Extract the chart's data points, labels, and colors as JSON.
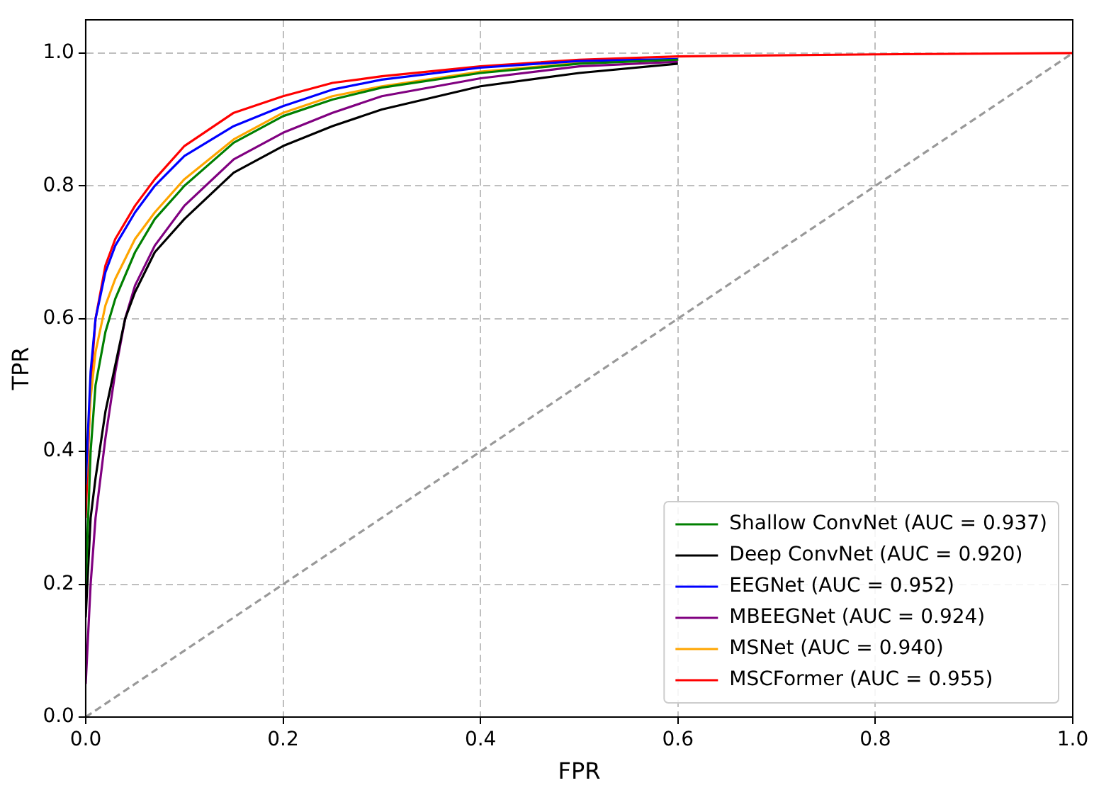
{
  "chart_data": {
    "type": "line",
    "xlabel": "FPR",
    "ylabel": "TPR",
    "xlim": [
      0,
      1
    ],
    "ylim": [
      0,
      1.05
    ],
    "xticks": [
      {
        "value": 0,
        "label": "0.0"
      },
      {
        "value": 0.2,
        "label": "0.2"
      },
      {
        "value": 0.4,
        "label": "0.4"
      },
      {
        "value": 0.6,
        "label": "0.6"
      },
      {
        "value": 0.8,
        "label": "0.8"
      },
      {
        "value": 1,
        "label": "1.0"
      }
    ],
    "yticks": [
      {
        "value": 0,
        "label": "0.0"
      },
      {
        "value": 0.2,
        "label": "0.2"
      },
      {
        "value": 0.4,
        "label": "0.4"
      },
      {
        "value": 0.6,
        "label": "0.6"
      },
      {
        "value": 0.8,
        "label": "0.8"
      },
      {
        "value": 1,
        "label": "1.0"
      }
    ],
    "grid": true,
    "legend": "bottom right",
    "marker": "none",
    "series": [
      {
        "name": "Shallow ConvNet (AUC = 0.937)",
        "color": "#008000",
        "x": [
          0,
          0.005,
          0.01,
          0.02,
          0.03,
          0.05,
          0.07,
          0.1,
          0.15,
          0.2,
          0.25,
          0.3,
          0.4,
          0.5,
          0.6
        ],
        "values": [
          0.2,
          0.4,
          0.5,
          0.58,
          0.63,
          0.7,
          0.75,
          0.8,
          0.865,
          0.905,
          0.93,
          0.948,
          0.97,
          0.984,
          0.99
        ]
      },
      {
        "name": "Deep ConvNet (AUC = 0.920)",
        "color": "#000000",
        "x": [
          0,
          0.005,
          0.01,
          0.02,
          0.03,
          0.04,
          0.05,
          0.07,
          0.1,
          0.15,
          0.2,
          0.25,
          0.3,
          0.4,
          0.5,
          0.6
        ],
        "values": [
          0.15,
          0.3,
          0.36,
          0.46,
          0.53,
          0.6,
          0.64,
          0.7,
          0.75,
          0.82,
          0.86,
          0.89,
          0.915,
          0.95,
          0.97,
          0.984
        ]
      },
      {
        "name": "EEGNet (AUC = 0.952)",
        "color": "#0000ff",
        "x": [
          0,
          0.005,
          0.01,
          0.02,
          0.03,
          0.05,
          0.07,
          0.1,
          0.15,
          0.2,
          0.25,
          0.3,
          0.4,
          0.5,
          0.6
        ],
        "values": [
          0.35,
          0.52,
          0.6,
          0.67,
          0.71,
          0.76,
          0.8,
          0.845,
          0.89,
          0.92,
          0.945,
          0.96,
          0.978,
          0.988,
          0.991
        ]
      },
      {
        "name": "MBEEGNet (AUC = 0.924)",
        "color": "#800080",
        "x": [
          0,
          0.005,
          0.01,
          0.02,
          0.03,
          0.04,
          0.05,
          0.07,
          0.1,
          0.15,
          0.2,
          0.25,
          0.3,
          0.4,
          0.5,
          0.6
        ],
        "values": [
          0.05,
          0.2,
          0.3,
          0.42,
          0.52,
          0.6,
          0.65,
          0.71,
          0.77,
          0.84,
          0.88,
          0.91,
          0.935,
          0.962,
          0.98,
          0.987
        ]
      },
      {
        "name": "MSNet (AUC = 0.940)",
        "color": "#ffa500",
        "x": [
          0,
          0.005,
          0.01,
          0.02,
          0.03,
          0.05,
          0.07,
          0.1,
          0.15,
          0.2,
          0.25,
          0.3,
          0.4,
          0.5,
          0.6
        ],
        "values": [
          0.35,
          0.48,
          0.55,
          0.62,
          0.66,
          0.72,
          0.76,
          0.81,
          0.87,
          0.91,
          0.935,
          0.95,
          0.972,
          0.985,
          0.99
        ]
      },
      {
        "name": "MSCFormer (AUC = 0.955)",
        "color": "#ff0000",
        "x": [
          0,
          0.005,
          0.01,
          0.02,
          0.03,
          0.05,
          0.07,
          0.1,
          0.15,
          0.2,
          0.25,
          0.3,
          0.4,
          0.5,
          0.6,
          0.8,
          1
        ],
        "values": [
          0.3,
          0.5,
          0.6,
          0.68,
          0.72,
          0.77,
          0.81,
          0.86,
          0.91,
          0.935,
          0.955,
          0.965,
          0.98,
          0.99,
          0.995,
          0.998,
          1
        ]
      },
      {
        "color": "#999999",
        "line_style": "dashed",
        "x": [
          0,
          1
        ],
        "values": [
          0,
          1
        ]
      }
    ]
  }
}
